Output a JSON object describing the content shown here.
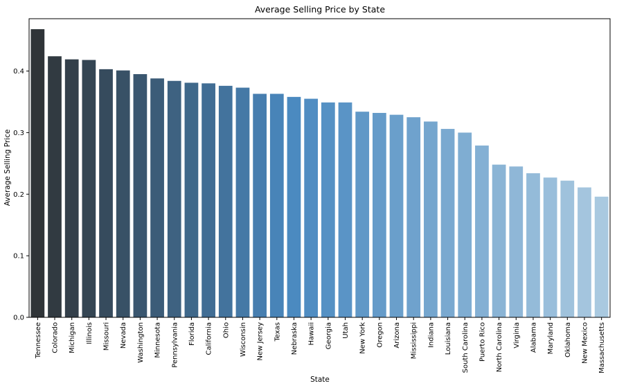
{
  "chart_data": {
    "type": "bar",
    "title": "Average Selling Price by State",
    "xlabel": "State",
    "ylabel": "Average Selling Price",
    "ylim": [
      0,
      0.485
    ],
    "yticks": [
      "0.0",
      "0.1",
      "0.2",
      "0.3",
      "0.4"
    ],
    "grid": false,
    "categories": [
      "Tennessee",
      "Colorado",
      "Michigan",
      "Illinois",
      "Missouri",
      "Nevada",
      "Washington",
      "Minnesota",
      "Pennsylvania",
      "Florida",
      "California",
      "Ohio",
      "Wisconsin",
      "New Jersey",
      "Texas",
      "Nebraska",
      "Hawaii",
      "Georgia",
      "Utah",
      "New York",
      "Oregon",
      "Arizona",
      "Mississippi",
      "Indiana",
      "Louisiana",
      "South Carolina",
      "Puerto Rico",
      "North Carolina",
      "Virginia",
      "Alabama",
      "Maryland",
      "Oklahoma",
      "New Mexico",
      "Massachusetts"
    ],
    "values": [
      0.468,
      0.424,
      0.419,
      0.418,
      0.403,
      0.401,
      0.395,
      0.388,
      0.384,
      0.381,
      0.38,
      0.376,
      0.373,
      0.363,
      0.363,
      0.358,
      0.355,
      0.349,
      0.349,
      0.334,
      0.332,
      0.329,
      0.325,
      0.318,
      0.306,
      0.3,
      0.279,
      0.248,
      0.245,
      0.234,
      0.227,
      0.222,
      0.211,
      0.196
    ],
    "palette": {
      "dark": "#2f3438",
      "mid": "#4a89c0",
      "light": "#a9c9e0"
    },
    "axis_color": "#000000"
  }
}
